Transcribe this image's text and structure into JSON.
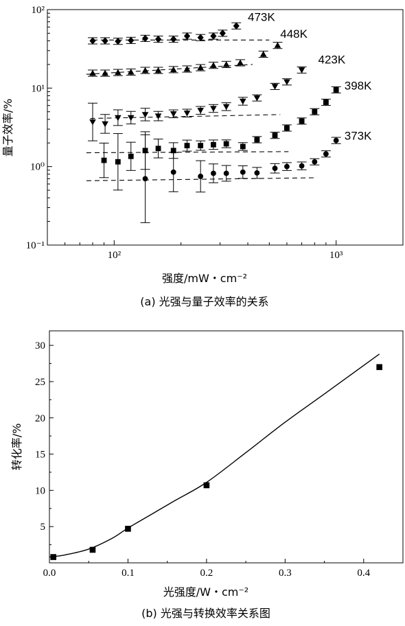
{
  "chart_data": [
    {
      "type": "scatter",
      "title": "",
      "caption": "(a) 光强与量子效率的关系",
      "xlabel": "强度/mW・cm⁻²",
      "ylabel": "量子效率/%",
      "xscale": "log",
      "yscale": "log",
      "xlim": [
        50,
        2000
      ],
      "ylim": [
        0.1,
        100
      ],
      "xticks": [
        {
          "v": 100,
          "label": "10²"
        },
        {
          "v": 1000,
          "label": "10³"
        }
      ],
      "yticks": [
        {
          "v": 100,
          "label": "10²"
        },
        {
          "v": 10,
          "label": "10¹"
        },
        {
          "v": 1,
          "label": "10⁰"
        },
        {
          "v": 0.1,
          "label": "10⁻¹"
        }
      ],
      "series": [
        {
          "name": "473K",
          "marker": "diamond",
          "name_x": 400,
          "name_y": 72,
          "trend": {
            "x": [
              80,
              500
            ],
            "y": [
              41,
              41
            ]
          },
          "points": [
            {
              "x": 80,
              "y": 40,
              "e": 0.04
            },
            {
              "x": 91,
              "y": 40,
              "e": 0.04
            },
            {
              "x": 104,
              "y": 39.5,
              "e": 0.04
            },
            {
              "x": 119,
              "y": 40.5,
              "e": 0.04
            },
            {
              "x": 138,
              "y": 43,
              "e": 0.04
            },
            {
              "x": 158,
              "y": 42,
              "e": 0.04
            },
            {
              "x": 185,
              "y": 42,
              "e": 0.04
            },
            {
              "x": 213,
              "y": 46,
              "e": 0.04
            },
            {
              "x": 245,
              "y": 44,
              "e": 0.04
            },
            {
              "x": 280,
              "y": 46,
              "e": 0.04
            },
            {
              "x": 308,
              "y": 50,
              "e": 0.04
            },
            {
              "x": 355,
              "y": 62,
              "e": 0.04
            }
          ]
        },
        {
          "name": "448K",
          "marker": "triangle-up",
          "name_x": 560,
          "name_y": 44,
          "trend": {
            "x": [
              75,
              420
            ],
            "y": [
              15,
              20
            ]
          },
          "points": [
            {
              "x": 80,
              "y": 15.5,
              "e": 0.04
            },
            {
              "x": 91,
              "y": 15.5,
              "e": 0.04
            },
            {
              "x": 104,
              "y": 15.8,
              "e": 0.04
            },
            {
              "x": 119,
              "y": 16,
              "e": 0.04
            },
            {
              "x": 138,
              "y": 16.8,
              "e": 0.04
            },
            {
              "x": 158,
              "y": 16.8,
              "e": 0.04
            },
            {
              "x": 185,
              "y": 17.2,
              "e": 0.04
            },
            {
              "x": 213,
              "y": 17.5,
              "e": 0.04
            },
            {
              "x": 245,
              "y": 18.2,
              "e": 0.04
            },
            {
              "x": 280,
              "y": 19.5,
              "e": 0.04
            },
            {
              "x": 320,
              "y": 20,
              "e": 0.04
            },
            {
              "x": 370,
              "y": 21,
              "e": 0.04
            },
            {
              "x": 470,
              "y": 27,
              "e": 0.04
            },
            {
              "x": 545,
              "y": 35,
              "e": 0.04
            }
          ]
        },
        {
          "name": "423K",
          "marker": "triangle-down",
          "name_x": 830,
          "name_y": 20.5,
          "trend": {
            "x": [
              78,
              560
            ],
            "y": [
              4.1,
              4.6
            ]
          },
          "points": [
            {
              "x": 80,
              "y": 3.7,
              "e": 0.24
            },
            {
              "x": 91,
              "y": 3.5,
              "e": 0.12
            },
            {
              "x": 104,
              "y": 4.2,
              "e": 0.1
            },
            {
              "x": 119,
              "y": 4.2,
              "e": 0.08
            },
            {
              "x": 138,
              "y": 4.6,
              "e": 0.08
            },
            {
              "x": 158,
              "y": 4.4,
              "e": 0.06
            },
            {
              "x": 185,
              "y": 4.7,
              "e": 0.05
            },
            {
              "x": 213,
              "y": 4.8,
              "e": 0.05
            },
            {
              "x": 245,
              "y": 5.2,
              "e": 0.05
            },
            {
              "x": 280,
              "y": 5.5,
              "e": 0.05
            },
            {
              "x": 320,
              "y": 5.8,
              "e": 0.05
            },
            {
              "x": 380,
              "y": 6.8,
              "e": 0.05
            },
            {
              "x": 440,
              "y": 7.5,
              "e": 0.04
            },
            {
              "x": 530,
              "y": 10.5,
              "e": 0.04
            },
            {
              "x": 600,
              "y": 12,
              "e": 0.04
            },
            {
              "x": 700,
              "y": 17,
              "e": 0.04
            }
          ]
        },
        {
          "name": "398K",
          "marker": "square",
          "name_x": 1090,
          "name_y": 9.6,
          "trend": {
            "x": [
              75,
              610
            ],
            "y": [
              1.5,
              1.55
            ]
          },
          "points": [
            {
              "x": 90,
              "y": 1.2,
              "e": 0.22
            },
            {
              "x": 104,
              "y": 1.15,
              "e": 0.36
            },
            {
              "x": 119,
              "y": 1.35,
              "e": 0.18
            },
            {
              "x": 138,
              "y": 1.6,
              "e": 0.24
            },
            {
              "x": 158,
              "y": 1.7,
              "e": 0.12
            },
            {
              "x": 185,
              "y": 1.6,
              "e": 0.1
            },
            {
              "x": 213,
              "y": 1.85,
              "e": 0.07
            },
            {
              "x": 245,
              "y": 1.85,
              "e": 0.06
            },
            {
              "x": 280,
              "y": 1.9,
              "e": 0.06
            },
            {
              "x": 320,
              "y": 1.95,
              "e": 0.05
            },
            {
              "x": 380,
              "y": 1.8,
              "e": 0.05
            },
            {
              "x": 440,
              "y": 2.2,
              "e": 0.04
            },
            {
              "x": 530,
              "y": 2.5,
              "e": 0.04
            },
            {
              "x": 600,
              "y": 3.1,
              "e": 0.04
            },
            {
              "x": 700,
              "y": 3.8,
              "e": 0.04
            },
            {
              "x": 800,
              "y": 5,
              "e": 0.04
            },
            {
              "x": 900,
              "y": 6.6,
              "e": 0.04
            },
            {
              "x": 1000,
              "y": 9.5,
              "e": 0.04
            }
          ]
        },
        {
          "name": "373K",
          "marker": "circle",
          "name_x": 1090,
          "name_y": 2.2,
          "trend": {
            "x": [
              75,
              800
            ],
            "y": [
              0.66,
              0.72
            ]
          },
          "points": [
            {
              "x": 138,
              "y": 0.7,
              "e": 0.56
            },
            {
              "x": 185,
              "y": 0.85,
              "e": 0.25
            },
            {
              "x": 245,
              "y": 0.75,
              "e": 0.2
            },
            {
              "x": 280,
              "y": 0.82,
              "e": 0.12
            },
            {
              "x": 320,
              "y": 0.82,
              "e": 0.1
            },
            {
              "x": 380,
              "y": 0.85,
              "e": 0.08
            },
            {
              "x": 440,
              "y": 0.83,
              "e": 0.07
            },
            {
              "x": 530,
              "y": 0.95,
              "e": 0.06
            },
            {
              "x": 600,
              "y": 1,
              "e": 0.05
            },
            {
              "x": 700,
              "y": 1.02,
              "e": 0.05
            },
            {
              "x": 800,
              "y": 1.15,
              "e": 0.04
            },
            {
              "x": 900,
              "y": 1.45,
              "e": 0.04
            },
            {
              "x": 1000,
              "y": 2.15,
              "e": 0.04
            }
          ]
        }
      ]
    },
    {
      "type": "scatter",
      "title": "",
      "caption": "(b) 光强与转换效率关系图",
      "xlabel": "光强度/W・cm⁻²",
      "ylabel": "转化率/%",
      "xlim": [
        0,
        0.45
      ],
      "ylim": [
        0,
        32
      ],
      "xticks": [
        {
          "v": 0,
          "label": "0.0"
        },
        {
          "v": 0.1,
          "label": "0.1"
        },
        {
          "v": 0.2,
          "label": "0.2"
        },
        {
          "v": 0.3,
          "label": "0.3"
        },
        {
          "v": 0.4,
          "label": "0.4"
        }
      ],
      "yticks": [
        {
          "v": 5,
          "label": "5"
        },
        {
          "v": 10,
          "label": "10"
        },
        {
          "v": 15,
          "label": "15"
        },
        {
          "v": 20,
          "label": "20"
        },
        {
          "v": 25,
          "label": "25"
        },
        {
          "v": 30,
          "label": "30"
        }
      ],
      "points": {
        "x": [
          0.005,
          0.055,
          0.1,
          0.2,
          0.42
        ],
        "y": [
          0.8,
          1.8,
          4.7,
          10.7,
          27
        ]
      },
      "fit": {
        "x": [
          0.0,
          0.02,
          0.05,
          0.08,
          0.1,
          0.13,
          0.16,
          0.2,
          0.25,
          0.3,
          0.35,
          0.42
        ],
        "y": [
          0.8,
          1.1,
          1.9,
          3.4,
          4.8,
          6.7,
          8.6,
          11.1,
          15.2,
          19.4,
          23.3,
          28.8
        ]
      }
    }
  ]
}
